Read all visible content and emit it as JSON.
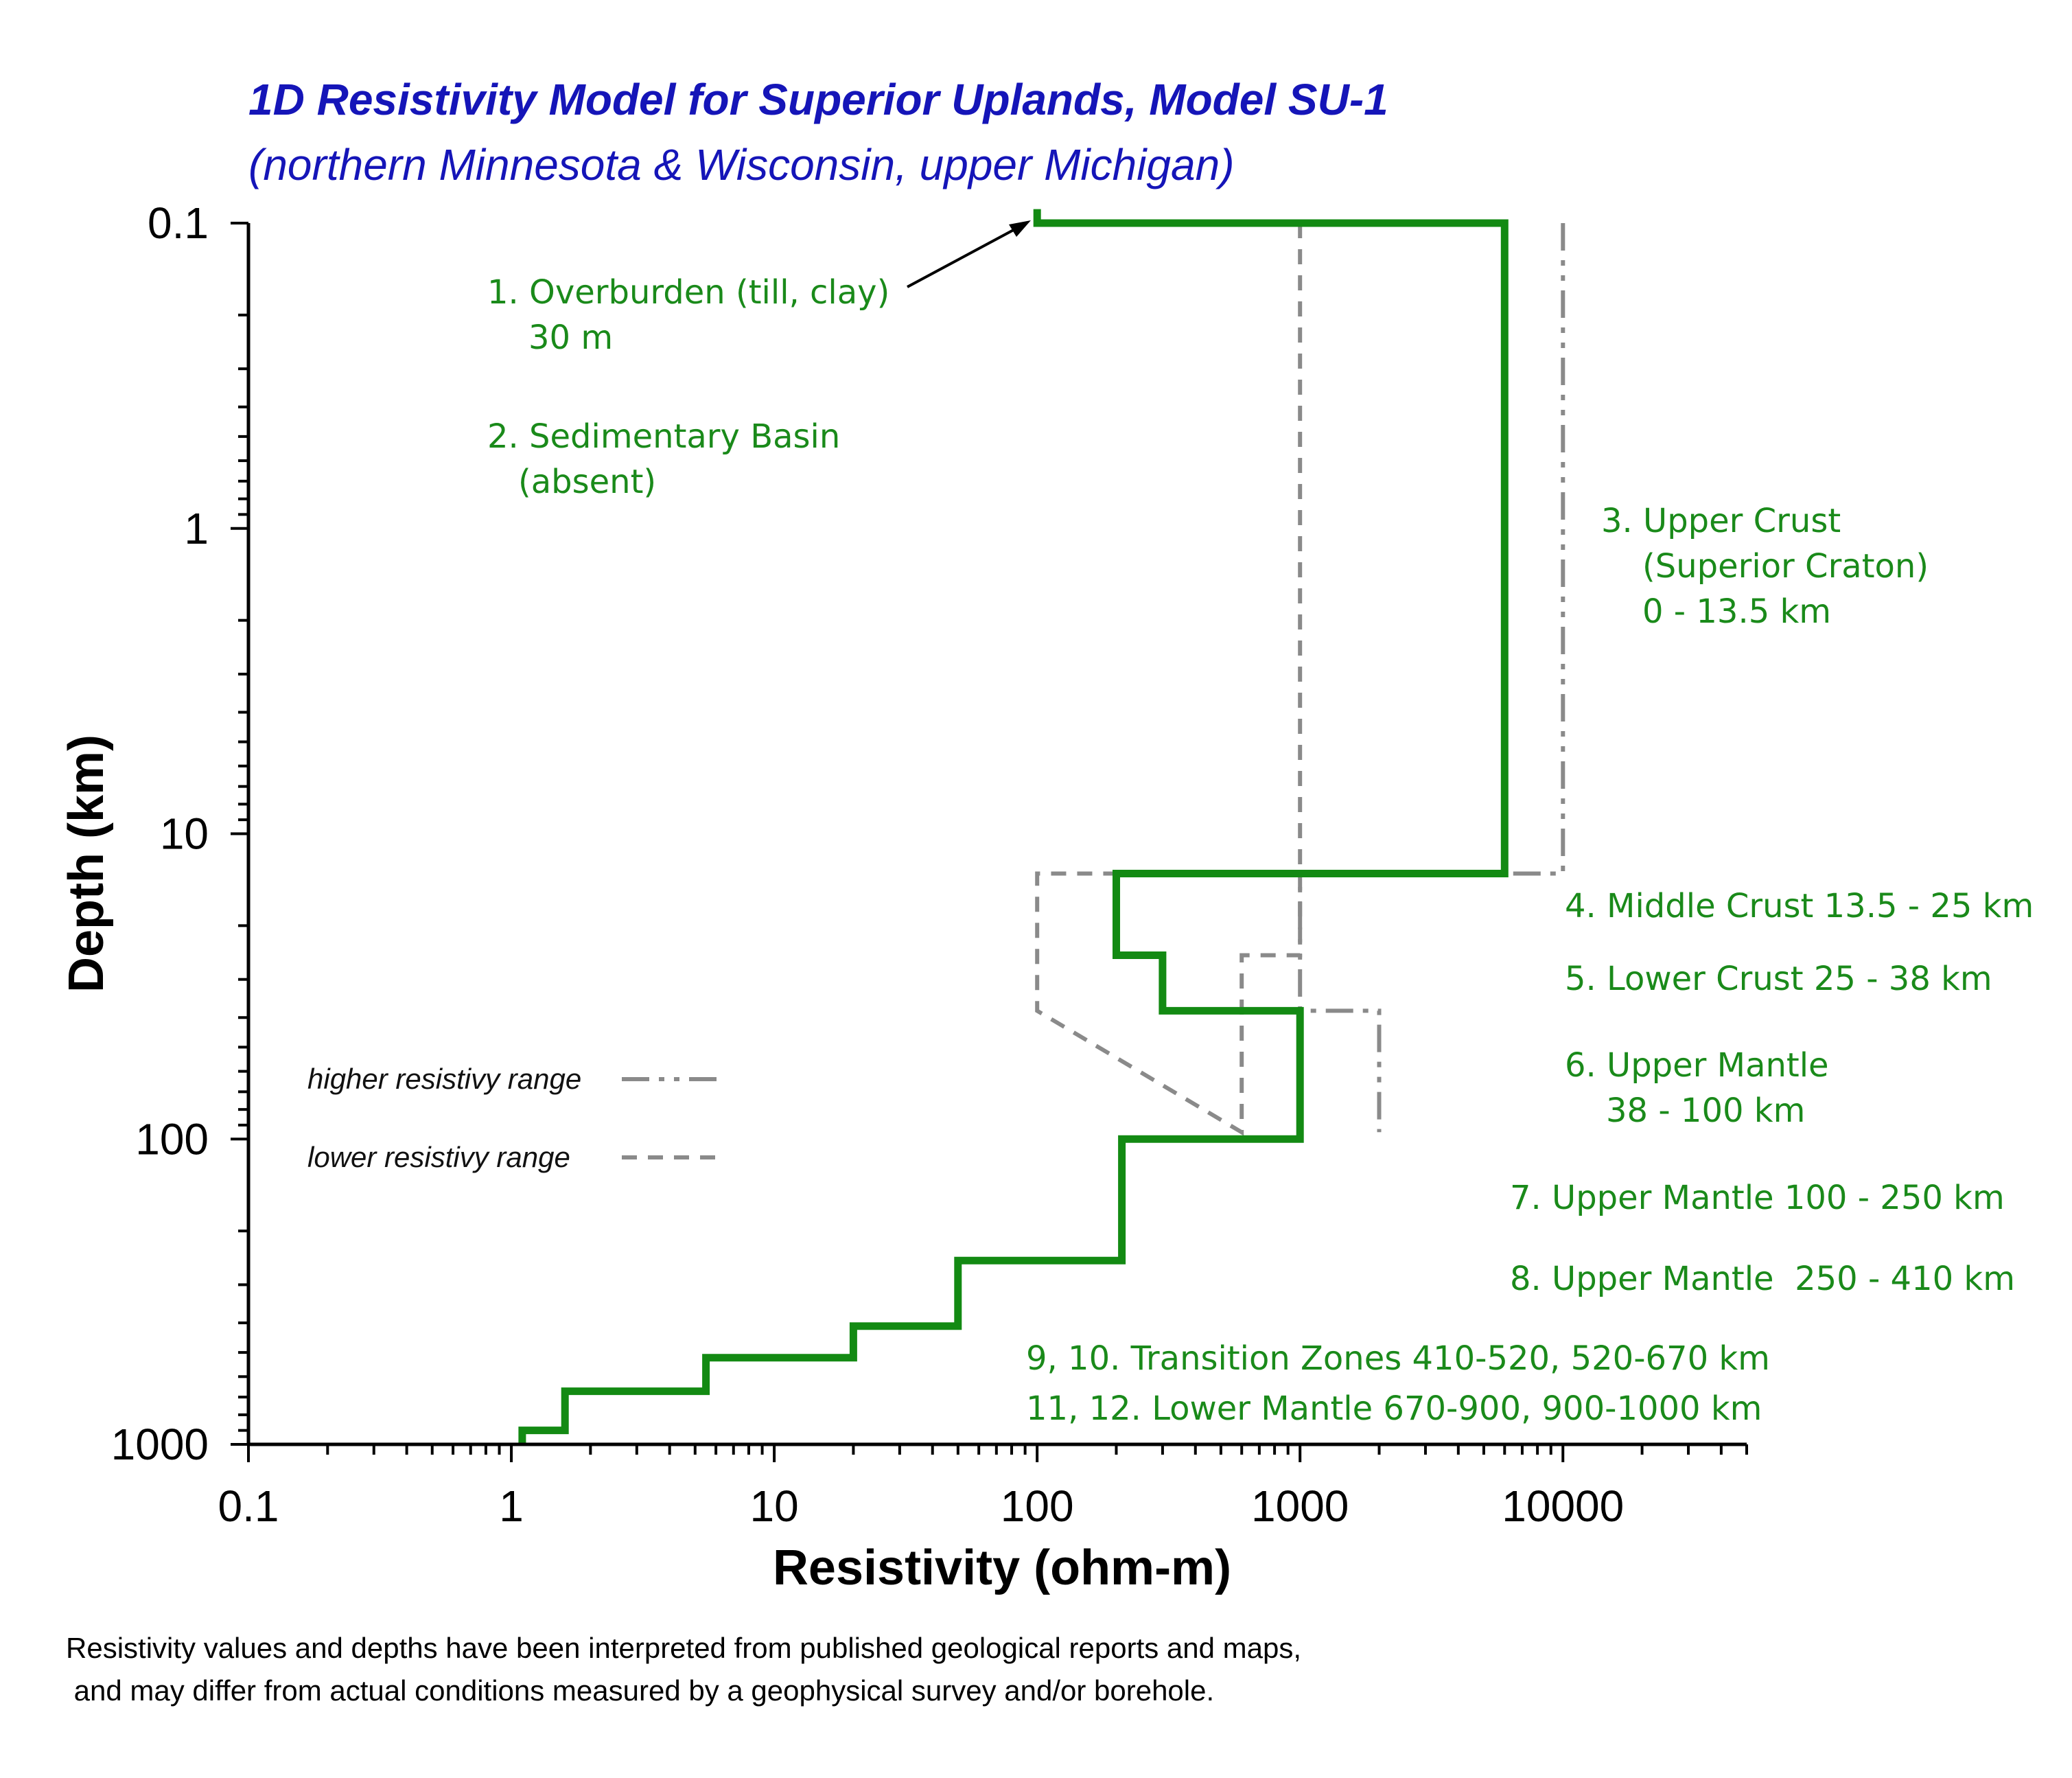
{
  "chart_data": {
    "type": "line",
    "title": "1D Resistivity Model for Superior Uplands, Model SU-1",
    "subtitle": "(northern Minnesota & Wisconsin, upper Michigan)",
    "xlabel": "Resistivity (ohm-m)",
    "ylabel": "Depth (km)",
    "x_scale": "log",
    "y_scale": "log",
    "y_inverted": true,
    "xlim": [
      0.1,
      50000
    ],
    "ylim": [
      0.1,
      1000
    ],
    "x_ticks": [
      "0.1",
      "1",
      "10",
      "100",
      "1000",
      "10000"
    ],
    "y_ticks": [
      "0.1",
      "1",
      "10",
      "100",
      "1000"
    ],
    "colors": {
      "model": "#138a13",
      "range": "#8a8a8a",
      "annotation": "#1a8a1a",
      "title": "#1515b8"
    },
    "series": [
      {
        "role": "model",
        "x": [
          100,
          100,
          6000,
          6000,
          200,
          200,
          300,
          300,
          1000,
          1000,
          210,
          210,
          50,
          50,
          20,
          20,
          5.5,
          5.5,
          1.6,
          1.6,
          1.1,
          1.1
        ],
        "y": [
          0.09,
          0.1,
          0.1,
          13.5,
          13.5,
          25,
          25,
          38,
          38,
          100,
          100,
          250,
          250,
          410,
          410,
          520,
          520,
          670,
          670,
          900,
          900,
          1000
        ]
      },
      {
        "name": "higher resistivy range",
        "style": "dash-dot-dot",
        "x": [
          10000,
          10000,
          1000,
          1000,
          2000,
          2000
        ],
        "y": [
          0.1,
          13.5,
          13.5,
          38,
          38,
          95
        ]
      },
      {
        "name": "lower resistivy range",
        "style": "dash",
        "x": [
          1000,
          1000,
          600,
          600,
          100,
          100,
          600,
          600
        ],
        "y": [
          0.1,
          25,
          25,
          95,
          38,
          13.5,
          13.5,
          13.5
        ]
      }
    ],
    "annotations": [
      {
        "lines": [
          "1. Overburden (till, clay)",
          "30 m"
        ]
      },
      {
        "lines": [
          "2. Sedimentary Basin",
          "(absent)"
        ]
      },
      {
        "lines": [
          "3. Upper Crust",
          "(Superior Craton)",
          "0 - 13.5 km"
        ]
      },
      {
        "lines": [
          "4. Middle Crust 13.5 - 25 km"
        ]
      },
      {
        "lines": [
          "5. Lower Crust 25 - 38 km"
        ]
      },
      {
        "lines": [
          "6. Upper Mantle",
          "38 - 100 km"
        ]
      },
      {
        "lines": [
          "7. Upper Mantle 100 - 250 km"
        ]
      },
      {
        "lines": [
          "8. Upper Mantle  250 - 410 km"
        ]
      },
      {
        "lines": [
          "9, 10. Transition Zones 410-520, 520-670 km"
        ]
      },
      {
        "lines": [
          "11, 12. Lower Mantle 670-900, 900-1000 km"
        ]
      }
    ],
    "legend": [
      {
        "label": "higher resistivy range",
        "style": "dash-dot-dot"
      },
      {
        "label": "lower resistivy range",
        "style": "dash"
      }
    ],
    "note": [
      "Resistivity values and depths have been interpreted from published geological reports and maps,",
      " and may differ from actual conditions measured by a geophysical survey and/or borehole."
    ]
  }
}
